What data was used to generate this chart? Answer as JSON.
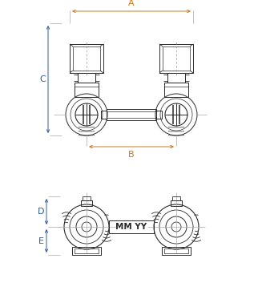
{
  "bg_color": "#ffffff",
  "line_color": "#2a2a2a",
  "dim_color_orange": "#c87820",
  "dim_color_blue": "#2a5a9a",
  "label_A": "A",
  "label_B": "B",
  "label_C": "C",
  "label_D": "D",
  "label_E": "E",
  "mm_yy_text": "MM YY",
  "figsize": [
    3.27,
    3.73
  ],
  "dpi": 100
}
